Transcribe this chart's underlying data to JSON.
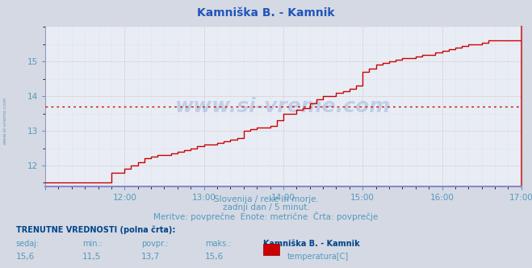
{
  "title": "Kamniška B. - Kamnik",
  "bg_color": "#d4d9e4",
  "plot_bg_color": "#e8edf5",
  "line_color": "#cc0000",
  "avg_line_color": "#cc0000",
  "avg_value": 13.7,
  "ymin": 11.4,
  "ymax": 16.0,
  "yticks": [
    12,
    13,
    14,
    15
  ],
  "tick_color": "#5599bb",
  "title_color": "#2255bb",
  "watermark": "www.si-vreme.com",
  "subtitle1": "Slovenija / reke in morje.",
  "subtitle2": "zadnji dan / 5 minut.",
  "subtitle3": "Meritve: povprečne  Enote: metrične  Črta: povprečje",
  "label_trenutne": "TRENUTNE VREDNOSTI (polna črta):",
  "label_sedaj": "sedaj:",
  "label_min": "min.:",
  "label_povpr": "povpr.:",
  "label_maks": "maks.:",
  "val_sedaj": "15,6",
  "val_min": "11,5",
  "val_povpr": "13,7",
  "val_maks": "15,6",
  "station_name": "Kamniška B. - Kamnik",
  "legend_label": "temperatura[C]",
  "legend_color": "#cc0000",
  "time_data": [
    11.0,
    11.25,
    11.333,
    11.417,
    11.5,
    11.583,
    11.667,
    11.75,
    11.833,
    11.917,
    12.0,
    12.083,
    12.167,
    12.25,
    12.333,
    12.417,
    12.5,
    12.583,
    12.667,
    12.75,
    12.833,
    12.917,
    13.0,
    13.083,
    13.167,
    13.25,
    13.333,
    13.417,
    13.5,
    13.583,
    13.667,
    13.75,
    13.833,
    13.917,
    14.0,
    14.083,
    14.167,
    14.25,
    14.333,
    14.417,
    14.5,
    14.583,
    14.667,
    14.75,
    14.833,
    14.917,
    15.0,
    15.083,
    15.167,
    15.25,
    15.333,
    15.417,
    15.5,
    15.583,
    15.667,
    15.75,
    15.833,
    15.917,
    16.0,
    16.083,
    16.167,
    16.25,
    16.333,
    16.417,
    16.5,
    16.583,
    16.667,
    16.75,
    16.833,
    16.917,
    17.0
  ],
  "temp_data": [
    11.5,
    11.5,
    11.5,
    11.5,
    11.5,
    11.5,
    11.5,
    11.5,
    11.8,
    11.8,
    11.9,
    12.0,
    12.1,
    12.2,
    12.25,
    12.3,
    12.3,
    12.35,
    12.4,
    12.45,
    12.5,
    12.55,
    12.6,
    12.6,
    12.65,
    12.7,
    12.75,
    12.8,
    13.0,
    13.05,
    13.1,
    13.1,
    13.15,
    13.3,
    13.5,
    13.5,
    13.6,
    13.65,
    13.8,
    13.9,
    14.0,
    14.0,
    14.1,
    14.15,
    14.2,
    14.3,
    14.7,
    14.8,
    14.9,
    14.95,
    15.0,
    15.05,
    15.1,
    15.1,
    15.15,
    15.2,
    15.2,
    15.25,
    15.3,
    15.35,
    15.4,
    15.45,
    15.5,
    15.5,
    15.55,
    15.6,
    15.6,
    15.6,
    15.6,
    15.6,
    15.6
  ],
  "xtick_positions": [
    11.0,
    12.0,
    13.0,
    14.0,
    15.0,
    16.0,
    17.0
  ],
  "xtick_labels": [
    "",
    "12:00",
    "13:00",
    "14:00",
    "15:00",
    "16:00",
    "17:00"
  ],
  "xmin": 11.0,
  "xmax": 17.0,
  "grid_major_color": "#cc9999",
  "grid_minor_color": "#ddbbbb",
  "spine_bottom_color": "#8888cc",
  "spine_right_color": "#cc4444"
}
